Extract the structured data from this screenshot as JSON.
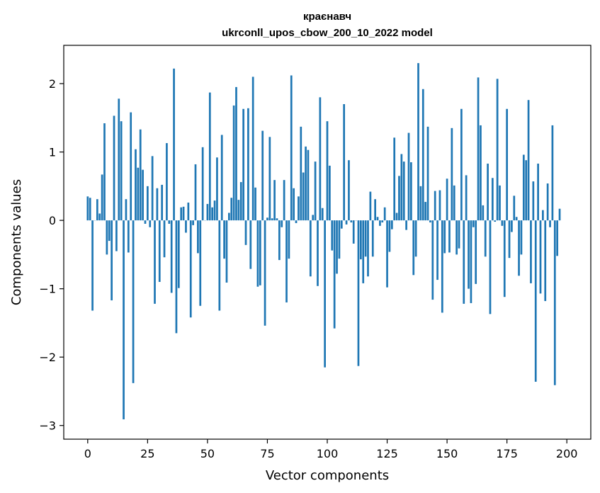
{
  "chart_data": {
    "type": "bar",
    "title_line1": "краєнавч",
    "title_line2": "ukrconll_upos_cbow_200_10_2022 model",
    "xlabel": "Vector components",
    "ylabel": "Components values",
    "xlim": [
      -10,
      210
    ],
    "ylim": [
      -3.2,
      2.56
    ],
    "xticks": [
      0,
      25,
      50,
      75,
      100,
      125,
      150,
      175,
      200
    ],
    "xtick_labels": [
      "0",
      "25",
      "50",
      "75",
      "100",
      "125",
      "150",
      "175",
      "200"
    ],
    "yticks": [
      -3,
      -2,
      -1,
      0,
      1,
      2
    ],
    "ytick_labels": [
      "−3",
      "−2",
      "−1",
      "0",
      "1",
      "2"
    ],
    "bar_color": "#1f77b4",
    "values": [
      0.35,
      0.33,
      -1.32,
      0.0,
      0.31,
      0.1,
      0.67,
      1.42,
      -0.5,
      -0.3,
      -1.17,
      1.53,
      -0.45,
      1.78,
      1.45,
      -2.91,
      0.31,
      -0.47,
      1.58,
      -2.38,
      1.04,
      0.77,
      1.33,
      0.74,
      -0.05,
      0.5,
      -0.1,
      0.94,
      -1.22,
      0.47,
      -0.9,
      0.52,
      -0.54,
      1.13,
      -0.05,
      -1.06,
      2.22,
      -1.65,
      -0.99,
      0.19,
      0.2,
      -0.18,
      0.26,
      -1.42,
      -0.07,
      0.82,
      -0.48,
      -1.25,
      1.07,
      0.0,
      0.24,
      1.87,
      0.19,
      0.29,
      0.92,
      -1.32,
      1.25,
      -0.56,
      -0.91,
      0.11,
      0.33,
      1.68,
      1.95,
      0.3,
      0.56,
      1.63,
      -0.36,
      1.64,
      -0.71,
      2.1,
      0.48,
      -0.97,
      -0.95,
      1.31,
      -1.54,
      0.04,
      1.22,
      0.03,
      0.59,
      0.03,
      -0.58,
      -0.1,
      0.59,
      -1.2,
      -0.56,
      2.12,
      0.47,
      -0.04,
      0.35,
      1.37,
      0.7,
      1.08,
      1.03,
      -0.82,
      0.08,
      0.86,
      -0.96,
      1.8,
      0.18,
      -2.15,
      1.45,
      0.8,
      -0.44,
      -1.58,
      -0.78,
      -0.56,
      -0.12,
      1.7,
      -0.06,
      0.88,
      -0.03,
      -0.34,
      0.0,
      -2.13,
      -0.57,
      -0.92,
      -0.53,
      -0.82,
      0.42,
      -0.53,
      0.31,
      0.05,
      -0.08,
      -0.03,
      0.19,
      -0.98,
      -0.46,
      -0.13,
      1.21,
      0.11,
      0.65,
      0.97,
      0.86,
      -0.14,
      1.28,
      0.85,
      -0.8,
      -0.53,
      2.3,
      0.5,
      1.92,
      0.27,
      1.37,
      -0.03,
      -1.16,
      0.43,
      -0.87,
      0.44,
      -1.35,
      -0.48,
      0.61,
      -0.47,
      1.35,
      0.51,
      -0.5,
      -0.41,
      1.63,
      -1.22,
      0.66,
      -1.0,
      -1.21,
      -0.1,
      -0.93,
      2.09,
      1.39,
      0.22,
      -0.53,
      0.83,
      -1.37,
      0.62,
      -0.02,
      2.07,
      0.51,
      -0.08,
      -1.12,
      1.63,
      -0.55,
      -0.17,
      0.36,
      0.05,
      -0.81,
      -0.5,
      0.96,
      0.88,
      1.76,
      -0.92,
      0.57,
      -2.36,
      0.83,
      -1.07,
      0.15,
      -1.18,
      0.54,
      -0.1,
      1.39,
      -2.41,
      -0.52,
      0.17
    ]
  }
}
